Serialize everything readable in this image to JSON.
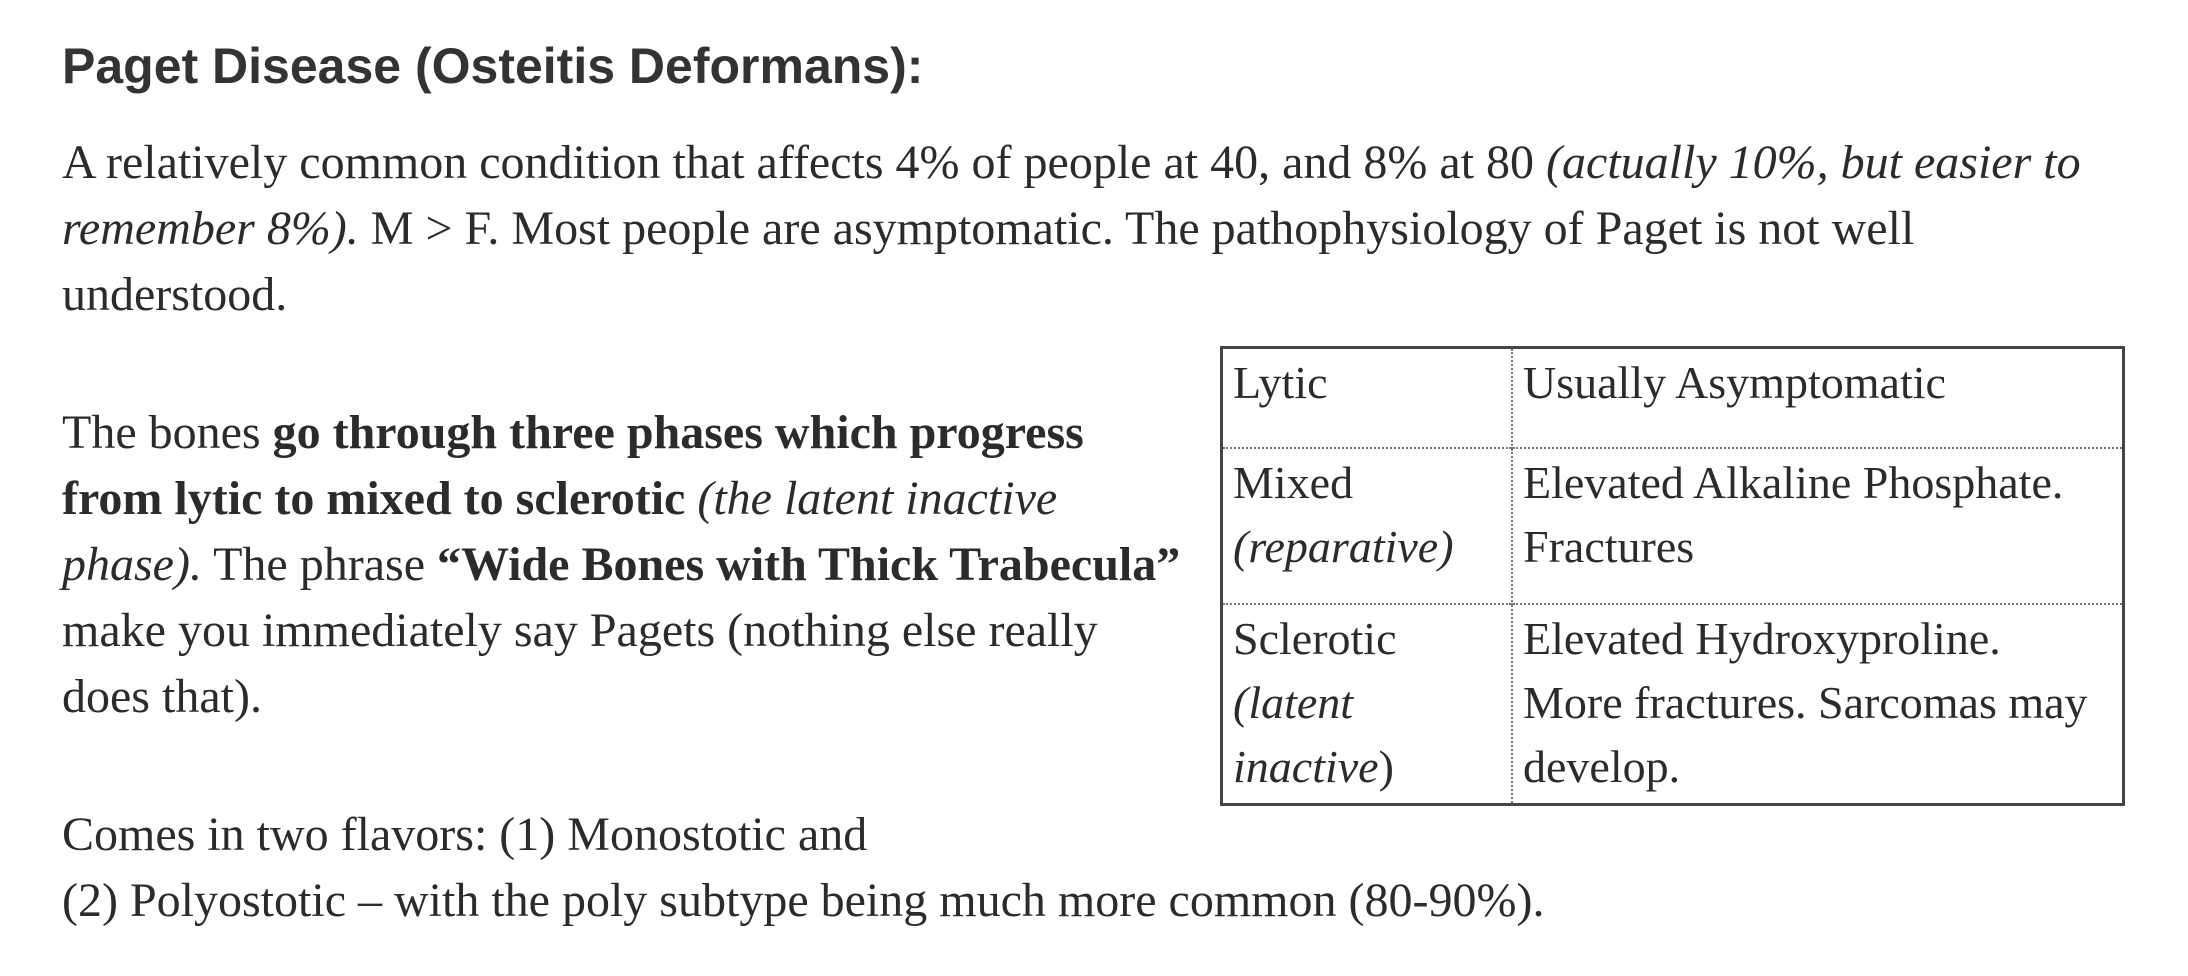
{
  "title": "Paget Disease (Osteitis Deformans):",
  "intro": {
    "text_1": "A relatively common condition that affects 4% of people at 40, and 8% at 80 ",
    "italic_1": "(actually 10%, but easier to remember 8%).",
    "text_2": "  M > F. Most people are asymptomatic.  The pathophysiology of Paget is not well understood."
  },
  "phases": {
    "text_1": "The bones ",
    "bold_1": "go through three phases which progress from lytic to mixed to sclerotic",
    "text_2": "  ",
    "italic_1": "(the latent inactive phase).",
    "text_3": "  The phrase ",
    "bold_2": "“Wide Bones with Thick Trabecula”",
    "text_4": " make you immediately say Pagets (nothing else really does that)."
  },
  "table": {
    "rows": [
      {
        "phase": "Lytic",
        "phase_note": "",
        "phase_note_tail": "",
        "description": "Usually Asymptomatic"
      },
      {
        "phase": "Mixed",
        "phase_note": "(reparative)",
        "phase_note_tail": "",
        "description": "Elevated Alkaline Phosphate.  Fractures"
      },
      {
        "phase": "Sclerotic",
        "phase_note": "(latent inactive",
        "phase_note_tail": ")",
        "description": "Elevated Hydroxyproline. More fractures. Sarcomas may develop."
      }
    ]
  },
  "flavors": {
    "line_1": "Comes in two flavors: (1) Monostotic and",
    "line_2": "(2) Polyostotic – with the poly subtype being much more common (80-90%)."
  }
}
